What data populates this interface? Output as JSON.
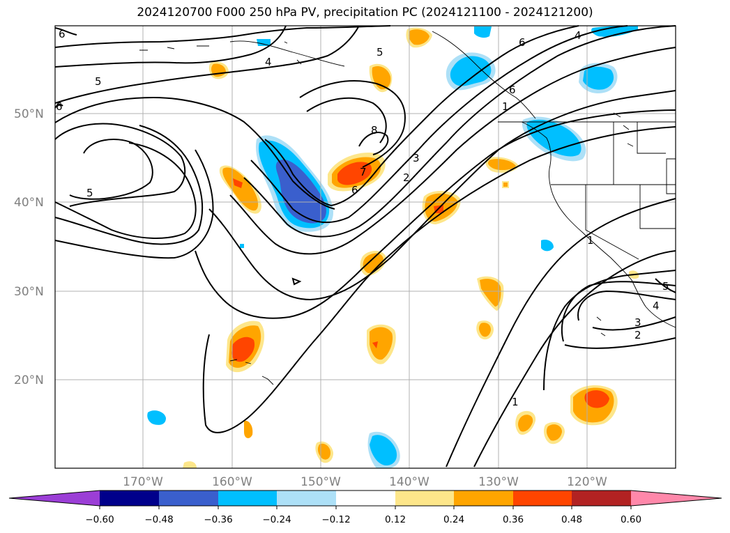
{
  "title": "2024120700 F000 250 hPa PV, precipitation PC (2024121100 - 2024121200)",
  "lat_labels": [
    "50°N",
    "40°N",
    "30°N",
    "20°N"
  ],
  "lon_labels": [
    "170°W",
    "160°W",
    "150°W",
    "140°W",
    "130°W",
    "120°W"
  ],
  "contour_labels": [
    "6",
    "5",
    "6",
    "5",
    "4",
    "5",
    "6",
    "4",
    "6",
    "1",
    "8",
    "7",
    "6",
    "3",
    "2",
    "1",
    "3",
    "4",
    "2",
    "5",
    "1"
  ],
  "colorbar": {
    "ticks": [
      "−0.60",
      "−0.48",
      "−0.36",
      "−0.24",
      "−0.12",
      "0.12",
      "0.24",
      "0.36",
      "0.48",
      "0.60"
    ],
    "colors": [
      "#9b3ed6",
      "#00008b",
      "#3a5fcd",
      "#00bfff",
      "#ade0f7",
      "#ffffff",
      "#fde68a",
      "#ffa500",
      "#ff4500",
      "#b22222",
      "#ff88aa"
    ]
  }
}
